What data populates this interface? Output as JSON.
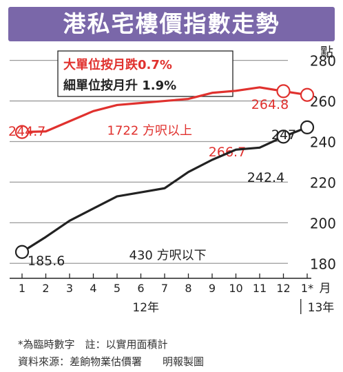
{
  "title": "港私宅樓價指數走勢",
  "legend": {
    "large": "大單位按月跌0.7%",
    "small": "細單位按月升 1.9%"
  },
  "colors": {
    "header": "#7a67a9",
    "large": "#e0312e",
    "small": "#222222",
    "grid": "#9a9a9a"
  },
  "footnote": "*為臨時數字　註：以實用面積計",
  "source": "資料來源：差餉物業估價署　　明報製圖",
  "chart_data": {
    "type": "line",
    "title": "港私宅樓價指數走勢",
    "categories": [
      "1",
      "2",
      "3",
      "4",
      "5",
      "6",
      "7",
      "8",
      "9",
      "10",
      "11",
      "12",
      "1*"
    ],
    "category_groups": [
      {
        "label": "12年",
        "from": 0,
        "to": 11
      },
      {
        "label": "13年",
        "from": 12,
        "to": 12
      }
    ],
    "x_unit": "月",
    "y_unit": "點",
    "ylim": [
      175,
      287
    ],
    "yticks": [
      180,
      200,
      220,
      240,
      260,
      280
    ],
    "grid": "horizontal",
    "series": [
      {
        "name": "1722 方呎以上",
        "color": "#e0312e",
        "values": [
          244.7,
          245,
          250,
          255,
          258,
          259,
          260,
          261,
          264,
          265,
          266.7,
          264.8,
          263
        ],
        "labels": [
          {
            "index": 0,
            "text": "244.7"
          },
          {
            "index": 10,
            "text": "266.7"
          },
          {
            "index": 11,
            "text": "264.8"
          }
        ],
        "markers": [
          0,
          11,
          12
        ]
      },
      {
        "name": "430 方呎以下",
        "color": "#222222",
        "values": [
          185.6,
          193,
          201,
          207,
          213,
          215,
          217,
          225,
          231,
          236,
          237,
          242.4,
          247
        ],
        "labels": [
          {
            "index": 0,
            "text": "185.6"
          },
          {
            "index": 11,
            "text": "242.4"
          },
          {
            "index": 12,
            "text": "247"
          }
        ],
        "markers": [
          0,
          11,
          12
        ]
      }
    ]
  }
}
